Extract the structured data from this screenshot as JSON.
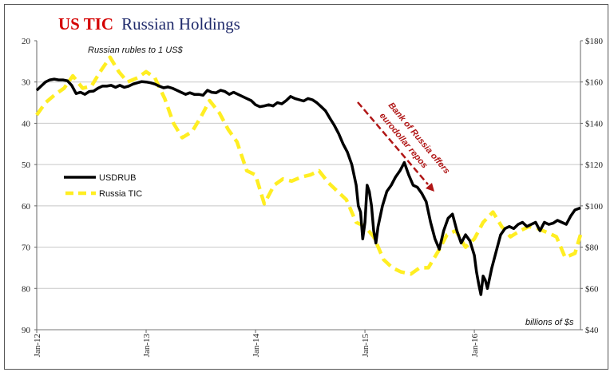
{
  "chart_data": {
    "type": "line",
    "title_part1": "US TIC",
    "title_part2": "Russian Holdings",
    "left_axis_note": "Russian rubles to 1 US$",
    "right_axis_note": "billions of $s",
    "annotation": [
      "Bank of Russia offers",
      "eurodollar repos"
    ],
    "x_ticks": [
      "Jan-12",
      "Jan-13",
      "Jan-14",
      "Jan-15",
      "Jan-16"
    ],
    "x_range": [
      2012.0,
      2016.97
    ],
    "left_axis": {
      "range": [
        20,
        90
      ],
      "inverted": true,
      "ticks": [
        "20",
        "30",
        "40",
        "50",
        "60",
        "70",
        "80",
        "90"
      ]
    },
    "right_axis": {
      "range": [
        40,
        180
      ],
      "ticks": [
        "$40",
        "$60",
        "$80",
        "$100",
        "$120",
        "$140",
        "$160",
        "$180"
      ]
    },
    "grid": true,
    "legend": {
      "placement": "left-middle"
    },
    "colors": {
      "usdrub": "#000000",
      "tic": "#ffee22",
      "annotation": "#b01616",
      "title_red": "#d40000",
      "title_navy": "#1f2a6b"
    },
    "series": [
      {
        "name": "USDRUB",
        "axis": "left",
        "x": [
          2012.0,
          2012.04,
          2012.08,
          2012.12,
          2012.16,
          2012.2,
          2012.24,
          2012.28,
          2012.32,
          2012.36,
          2012.4,
          2012.44,
          2012.48,
          2012.52,
          2012.56,
          2012.6,
          2012.64,
          2012.68,
          2012.72,
          2012.76,
          2012.8,
          2012.84,
          2012.88,
          2012.92,
          2012.96,
          2013.0,
          2013.04,
          2013.08,
          2013.12,
          2013.16,
          2013.2,
          2013.24,
          2013.28,
          2013.32,
          2013.36,
          2013.4,
          2013.44,
          2013.48,
          2013.52,
          2013.56,
          2013.6,
          2013.64,
          2013.68,
          2013.72,
          2013.76,
          2013.8,
          2013.84,
          2013.88,
          2013.92,
          2013.96,
          2014.0,
          2014.04,
          2014.08,
          2014.12,
          2014.16,
          2014.2,
          2014.24,
          2014.28,
          2014.32,
          2014.36,
          2014.4,
          2014.44,
          2014.48,
          2014.52,
          2014.56,
          2014.6,
          2014.64,
          2014.68,
          2014.72,
          2014.76,
          2014.8,
          2014.84,
          2014.88,
          2014.92,
          2014.94,
          2014.96,
          2014.98,
          2015.0,
          2015.02,
          2015.04,
          2015.06,
          2015.08,
          2015.1,
          2015.12,
          2015.16,
          2015.2,
          2015.24,
          2015.28,
          2015.32,
          2015.36,
          2015.4,
          2015.44,
          2015.48,
          2015.52,
          2015.56,
          2015.6,
          2015.64,
          2015.68,
          2015.72,
          2015.76,
          2015.8,
          2015.84,
          2015.88,
          2015.92,
          2015.96,
          2016.0,
          2016.02,
          2016.04,
          2016.06,
          2016.08,
          2016.1,
          2016.12,
          2016.16,
          2016.2,
          2016.24,
          2016.28,
          2016.32,
          2016.36,
          2016.4,
          2016.44,
          2016.48,
          2016.52,
          2016.56,
          2016.6,
          2016.64,
          2016.68,
          2016.72,
          2016.76,
          2016.8,
          2016.84,
          2016.88,
          2016.92,
          2016.97
        ],
        "values": [
          32.0,
          31.0,
          30.0,
          29.5,
          29.3,
          29.5,
          29.5,
          29.7,
          30.8,
          32.8,
          32.5,
          33.0,
          32.3,
          32.2,
          31.5,
          31.0,
          31.0,
          30.8,
          31.3,
          30.8,
          31.3,
          31.0,
          30.5,
          30.2,
          29.9,
          30.0,
          30.2,
          30.5,
          31.0,
          31.4,
          31.2,
          31.5,
          32.0,
          32.5,
          33.0,
          32.6,
          33.0,
          33.0,
          33.2,
          32.0,
          32.5,
          32.6,
          32.0,
          32.3,
          33.0,
          32.5,
          33.0,
          33.5,
          34.0,
          34.5,
          35.5,
          36.0,
          35.8,
          35.5,
          35.8,
          35.0,
          35.3,
          34.5,
          33.5,
          34.0,
          34.3,
          34.6,
          34.0,
          34.3,
          35.0,
          36.0,
          37.0,
          38.8,
          40.5,
          42.5,
          45.0,
          47.0,
          50.0,
          55.0,
          60.0,
          61.5,
          68.0,
          64.0,
          55.0,
          56.5,
          60.0,
          66.0,
          69.0,
          65.0,
          60.0,
          56.5,
          55.0,
          53.0,
          51.5,
          49.5,
          52.5,
          55.0,
          55.5,
          57.0,
          59.0,
          64.0,
          68.0,
          70.5,
          66.0,
          63.0,
          62.0,
          66.0,
          69.0,
          67.0,
          68.5,
          72.0,
          76.0,
          79.0,
          81.5,
          77.0,
          78.0,
          80.0,
          75.0,
          71.0,
          67.0,
          65.5,
          65.0,
          65.5,
          64.5,
          64.0,
          65.0,
          64.5,
          64.0,
          66.0,
          64.0,
          64.5,
          64.2,
          63.5,
          64.0,
          64.5,
          62.5,
          61.0,
          60.5
        ]
      },
      {
        "name": "Russia TIC",
        "axis": "right",
        "x": [
          2012.0,
          2012.08,
          2012.17,
          2012.25,
          2012.33,
          2012.42,
          2012.5,
          2012.58,
          2012.67,
          2012.75,
          2012.83,
          2012.92,
          2013.0,
          2013.08,
          2013.17,
          2013.25,
          2013.33,
          2013.42,
          2013.5,
          2013.58,
          2013.67,
          2013.75,
          2013.83,
          2013.92,
          2014.0,
          2014.08,
          2014.17,
          2014.25,
          2014.33,
          2014.42,
          2014.5,
          2014.58,
          2014.67,
          2014.75,
          2014.83,
          2014.92,
          2015.0,
          2015.08,
          2015.17,
          2015.25,
          2015.33,
          2015.42,
          2015.5,
          2015.58,
          2015.67,
          2015.75,
          2015.83,
          2015.92,
          2016.0,
          2016.08,
          2016.17,
          2016.25,
          2016.33,
          2016.42,
          2016.5,
          2016.58,
          2016.67,
          2016.75,
          2016.83,
          2016.92,
          2016.97
        ],
        "values": [
          144,
          150,
          154,
          157,
          163,
          157,
          158,
          165,
          172,
          165,
          160,
          162,
          165,
          162,
          152,
          140,
          133,
          136,
          143,
          151,
          145,
          137,
          131,
          117,
          115,
          101,
          110,
          113,
          112,
          114,
          115,
          117,
          111,
          107,
          103,
          92,
          90,
          85,
          74,
          70,
          68,
          67,
          70,
          70,
          78,
          86,
          88,
          80,
          84,
          92,
          97,
          90,
          85,
          88,
          90,
          89,
          87,
          85,
          75,
          77,
          86
        ]
      }
    ]
  }
}
